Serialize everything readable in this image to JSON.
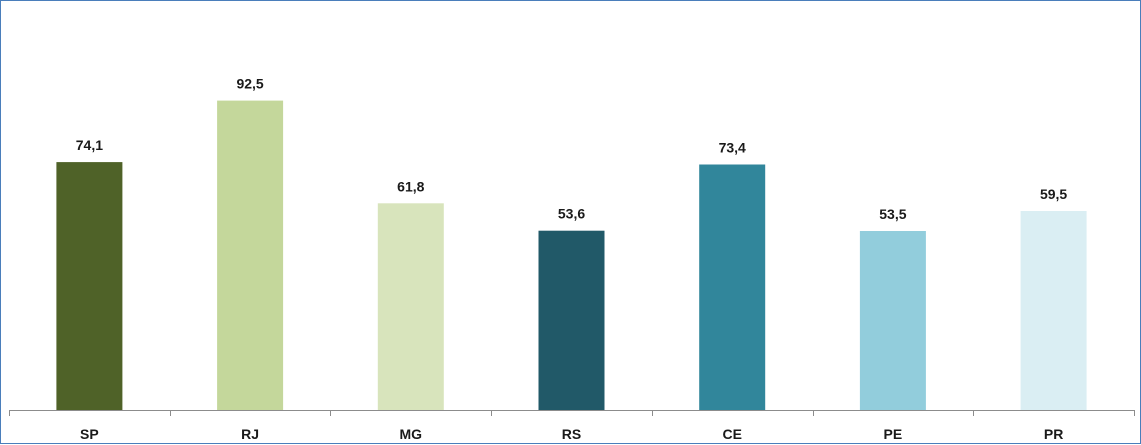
{
  "chart_data": {
    "type": "bar",
    "categories": [
      "SP",
      "RJ",
      "MG",
      "RS",
      "CE",
      "PE",
      "PR"
    ],
    "values": [
      74.1,
      92.5,
      61.8,
      53.6,
      73.4,
      53.5,
      59.5
    ],
    "value_labels": [
      "74,1",
      "92,5",
      "61,8",
      "53,6",
      "73,4",
      "53,5",
      "59,5"
    ],
    "colors": [
      "#4f6228",
      "#c4d79b",
      "#d8e4bc",
      "#215968",
      "#31869b",
      "#92cddc",
      "#daeef3"
    ],
    "ylim": [
      0,
      120
    ],
    "grid": false,
    "legend": "none"
  }
}
